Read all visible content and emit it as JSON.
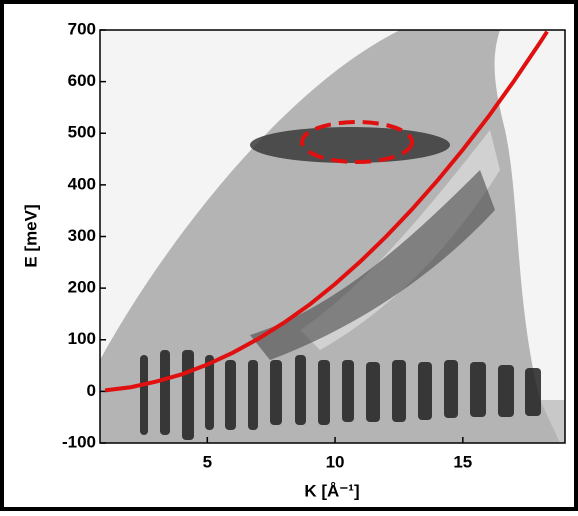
{
  "chart_data": {
    "type": "line",
    "x_label": "K [Å⁻¹]",
    "y_label": "E [meV]",
    "x": [
      1,
      2,
      3,
      4,
      5,
      6,
      7,
      8,
      9,
      10,
      11,
      12,
      13,
      14,
      15,
      16,
      17,
      18,
      18.3
    ],
    "series": [
      {
        "color": "#e01010",
        "values": [
          2,
          8,
          19,
          33,
          52,
          75,
          102,
          133,
          168,
          208,
          252,
          300,
          352,
          408,
          468,
          532,
          601,
          674,
          697
        ]
      }
    ],
    "xlim": [
      0.8,
      19.0
    ],
    "xticks": [
      5,
      10,
      15
    ],
    "ylim": [
      -100,
      700
    ],
    "yticks": [
      -100,
      0,
      100,
      200,
      300,
      400,
      500,
      600,
      700
    ]
  }
}
